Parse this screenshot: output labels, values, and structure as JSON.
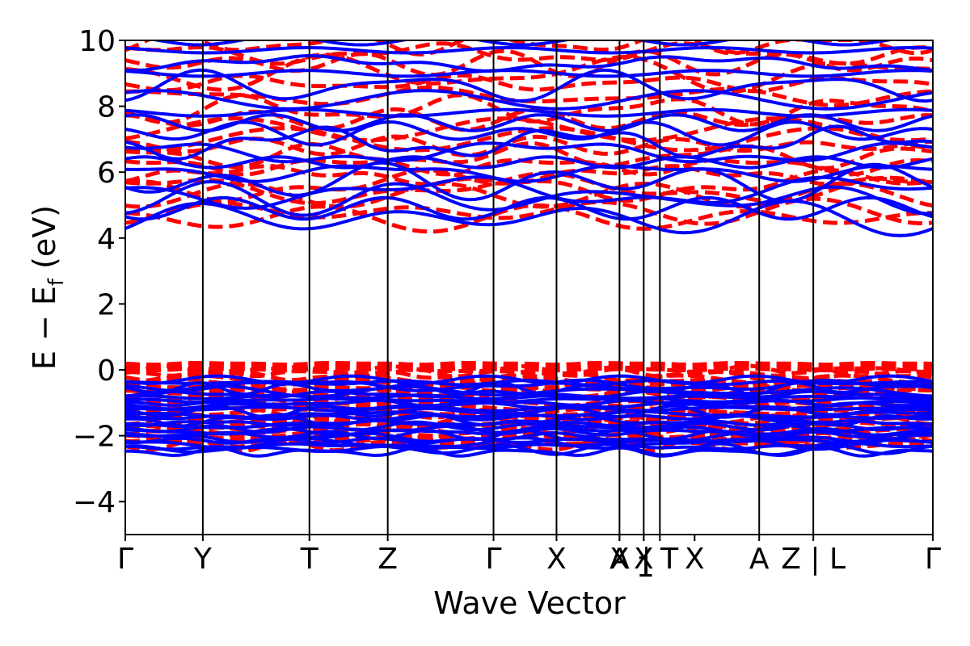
{
  "chart_data": {
    "type": "line",
    "title": "",
    "xlabel": "Wave Vector",
    "ylabel": "E − E",
    "ylabel_sub": "f",
    "ylabel_unit": " (eV)",
    "ylim": [
      -5,
      10
    ],
    "yticks": [
      -4,
      -2,
      0,
      2,
      4,
      6,
      8,
      10
    ],
    "ytick_labels": [
      "−4",
      "−2",
      "0",
      "2",
      "4",
      "6",
      "8",
      "10"
    ],
    "xlim": [
      0,
      1
    ],
    "kpoints": [
      {
        "x": 0.0,
        "label": "Γ"
      },
      {
        "x": 0.096,
        "label": "Y"
      },
      {
        "x": 0.228,
        "label": "T"
      },
      {
        "x": 0.325,
        "label": "Z"
      },
      {
        "x": 0.456,
        "label": "Γ"
      },
      {
        "x": 0.534,
        "label": "X"
      },
      {
        "x": 0.612,
        "label": "A"
      },
      {
        "x": 0.612,
        "label": "X"
      },
      {
        "x": 0.642,
        "label": "X"
      },
      {
        "x": 0.642,
        "label": "1"
      },
      {
        "x": 0.662,
        "label": "| T"
      },
      {
        "x": 0.705,
        "label": "X"
      },
      {
        "x": 0.785,
        "label": "A"
      },
      {
        "x": 0.852,
        "label": "Z | L"
      },
      {
        "x": 1.0,
        "label": "Γ"
      }
    ],
    "kpoint_lines": [
      0.096,
      0.228,
      0.325,
      0.456,
      0.534,
      0.612,
      0.642,
      0.662,
      0.785,
      0.852
    ],
    "series": [
      {
        "color": "#ff0000",
        "style": "dashed",
        "valence_range": [
          -2.3,
          0.1
        ],
        "conduction_bands": [
          4.6,
          4.8,
          5.3,
          5.5,
          5.6,
          5.9,
          6.2,
          6.5,
          6.8,
          7.0,
          7.3,
          7.6,
          7.9,
          8.3,
          8.7,
          9.0,
          9.3,
          9.6,
          9.9
        ]
      },
      {
        "color": "#0000ff",
        "style": "solid",
        "valence_range": [
          -2.5,
          -0.3
        ],
        "conduction_bands": [
          4.6,
          4.9,
          5.2,
          5.4,
          5.7,
          6.0,
          6.3,
          6.6,
          6.9,
          7.2,
          7.5,
          7.8,
          8.2,
          8.6,
          9.0,
          9.3,
          9.7,
          10.0
        ]
      }
    ],
    "colors": {
      "dft": "#ff0000",
      "model": "#0000ff",
      "axes": "#000000"
    }
  }
}
